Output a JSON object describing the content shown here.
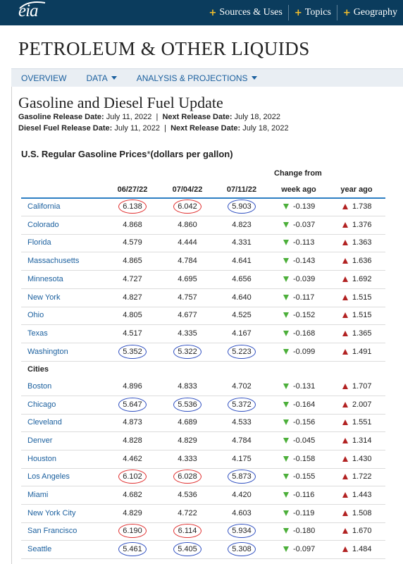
{
  "header": {
    "logo_text": "eia",
    "nav": [
      {
        "label": "Sources & Uses"
      },
      {
        "label": "Topics"
      },
      {
        "label": "Geography"
      }
    ]
  },
  "section_title": "PETROLEUM & OTHER LIQUIDS",
  "subnav": [
    {
      "label": "OVERVIEW",
      "dropdown": false
    },
    {
      "label": "DATA",
      "dropdown": true
    },
    {
      "label": "ANALYSIS & PROJECTIONS",
      "dropdown": true
    }
  ],
  "page": {
    "title": "Gasoline and Diesel Fuel Update",
    "gasoline_release_label": "Gasoline Release Date:",
    "gasoline_release_date": "July 11, 2022",
    "gasoline_next_label": "Next Release Date:",
    "gasoline_next_date": "July 18, 2022",
    "diesel_release_label": "Diesel Fuel Release Date:",
    "diesel_release_date": "July 11, 2022",
    "diesel_next_label": "Next Release Date:",
    "diesel_next_date": "July 18, 2022",
    "separator": "|"
  },
  "table": {
    "title_main": "U.S. Regular Gasoline Prices",
    "title_ast": "*",
    "title_unit": "(dollars per gallon)",
    "change_from": "Change from",
    "columns": [
      "06/27/22",
      "07/04/22",
      "07/11/22",
      "week ago",
      "year ago"
    ],
    "group_label": "Cities",
    "annotation_colors": {
      "red": "#e03030",
      "blue": "#2f4fc0"
    },
    "states": [
      {
        "name": "California",
        "v": [
          "6.138",
          "6.042",
          "5.903"
        ],
        "c": [
          "red",
          "red",
          "blue"
        ],
        "week": "-0.139",
        "year": "1.738"
      },
      {
        "name": "Colorado",
        "v": [
          "4.868",
          "4.860",
          "4.823"
        ],
        "c": [
          "",
          "",
          ""
        ],
        "week": "-0.037",
        "year": "1.376"
      },
      {
        "name": "Florida",
        "v": [
          "4.579",
          "4.444",
          "4.331"
        ],
        "c": [
          "",
          "",
          ""
        ],
        "week": "-0.113",
        "year": "1.363"
      },
      {
        "name": "Massachusetts",
        "v": [
          "4.865",
          "4.784",
          "4.641"
        ],
        "c": [
          "",
          "",
          ""
        ],
        "week": "-0.143",
        "year": "1.636"
      },
      {
        "name": "Minnesota",
        "v": [
          "4.727",
          "4.695",
          "4.656"
        ],
        "c": [
          "",
          "",
          ""
        ],
        "week": "-0.039",
        "year": "1.692"
      },
      {
        "name": "New York",
        "v": [
          "4.827",
          "4.757",
          "4.640"
        ],
        "c": [
          "",
          "",
          ""
        ],
        "week": "-0.117",
        "year": "1.515"
      },
      {
        "name": "Ohio",
        "v": [
          "4.805",
          "4.677",
          "4.525"
        ],
        "c": [
          "",
          "",
          ""
        ],
        "week": "-0.152",
        "year": "1.515"
      },
      {
        "name": "Texas",
        "v": [
          "4.517",
          "4.335",
          "4.167"
        ],
        "c": [
          "",
          "",
          ""
        ],
        "week": "-0.168",
        "year": "1.365"
      },
      {
        "name": "Washington",
        "v": [
          "5.352",
          "5.322",
          "5.223"
        ],
        "c": [
          "blue",
          "blue",
          "blue"
        ],
        "week": "-0.099",
        "year": "1.491"
      }
    ],
    "cities": [
      {
        "name": "Boston",
        "v": [
          "4.896",
          "4.833",
          "4.702"
        ],
        "c": [
          "",
          "",
          ""
        ],
        "week": "-0.131",
        "year": "1.707"
      },
      {
        "name": "Chicago",
        "v": [
          "5.647",
          "5.536",
          "5.372"
        ],
        "c": [
          "blue",
          "blue",
          "blue"
        ],
        "week": "-0.164",
        "year": "2.007"
      },
      {
        "name": "Cleveland",
        "v": [
          "4.873",
          "4.689",
          "4.533"
        ],
        "c": [
          "",
          "",
          ""
        ],
        "week": "-0.156",
        "year": "1.551"
      },
      {
        "name": "Denver",
        "v": [
          "4.828",
          "4.829",
          "4.784"
        ],
        "c": [
          "",
          "",
          ""
        ],
        "week": "-0.045",
        "year": "1.314"
      },
      {
        "name": "Houston",
        "v": [
          "4.462",
          "4.333",
          "4.175"
        ],
        "c": [
          "",
          "",
          ""
        ],
        "week": "-0.158",
        "year": "1.430"
      },
      {
        "name": "Los Angeles",
        "v": [
          "6.102",
          "6.028",
          "5.873"
        ],
        "c": [
          "red",
          "red",
          "blue"
        ],
        "week": "-0.155",
        "year": "1.722"
      },
      {
        "name": "Miami",
        "v": [
          "4.682",
          "4.536",
          "4.420"
        ],
        "c": [
          "",
          "",
          ""
        ],
        "week": "-0.116",
        "year": "1.443"
      },
      {
        "name": "New York City",
        "v": [
          "4.829",
          "4.722",
          "4.603"
        ],
        "c": [
          "",
          "",
          ""
        ],
        "week": "-0.119",
        "year": "1.508"
      },
      {
        "name": "San Francisco",
        "v": [
          "6.190",
          "6.114",
          "5.934"
        ],
        "c": [
          "red",
          "red",
          "blue"
        ],
        "week": "-0.180",
        "year": "1.670"
      },
      {
        "name": "Seattle",
        "v": [
          "5.461",
          "5.405",
          "5.308"
        ],
        "c": [
          "blue",
          "blue",
          "blue"
        ],
        "week": "-0.097",
        "year": "1.484"
      }
    ]
  }
}
